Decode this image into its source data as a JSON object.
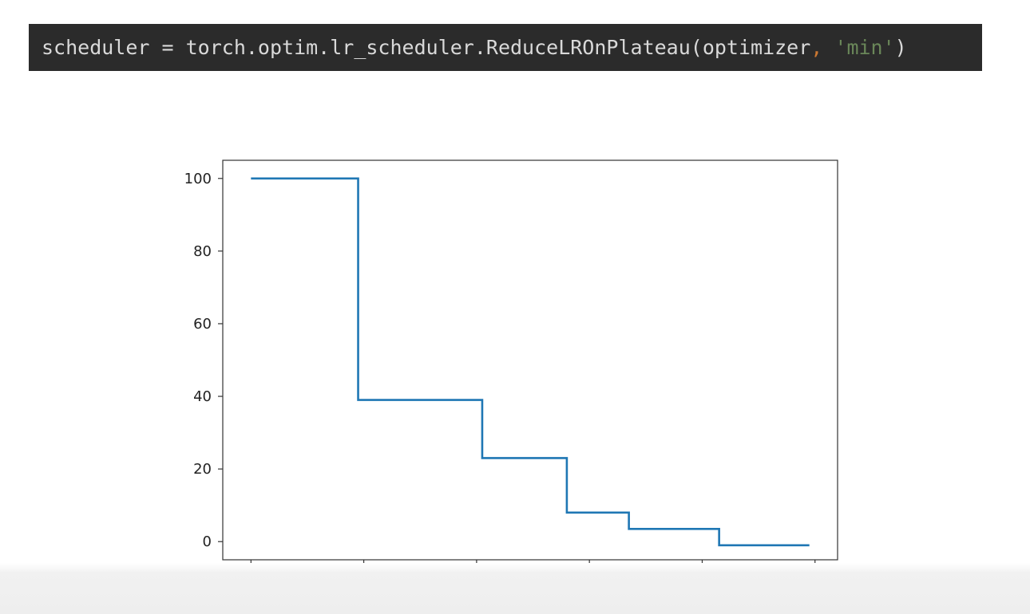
{
  "code": {
    "prefix": "scheduler = torch.optim.lr_scheduler.ReduceLROnPlateau(optimizer",
    "comma": ",",
    "space": " ",
    "string_arg": "'min'",
    "suffix": ")"
  },
  "colors": {
    "code_background": "#2b2b2b",
    "code_text": "#d9d9d9",
    "code_comma": "#cc7832",
    "code_string": "#6a8759",
    "line": "#1f77b4"
  },
  "chart_data": {
    "type": "line",
    "drawstyle": "steps-post",
    "title": "",
    "xlabel": "",
    "ylabel": "",
    "xlim": [
      -5,
      104
    ],
    "ylim": [
      -5,
      105
    ],
    "xticks": [
      0,
      20,
      40,
      60,
      80,
      100
    ],
    "yticks": [
      0,
      20,
      40,
      60,
      80,
      100
    ],
    "grid": false,
    "series": [
      {
        "x": [
          0,
          19,
          41,
          56,
          67,
          83,
          99
        ],
        "y": [
          100,
          39,
          23,
          8,
          3.5,
          -1,
          -1
        ]
      }
    ]
  }
}
